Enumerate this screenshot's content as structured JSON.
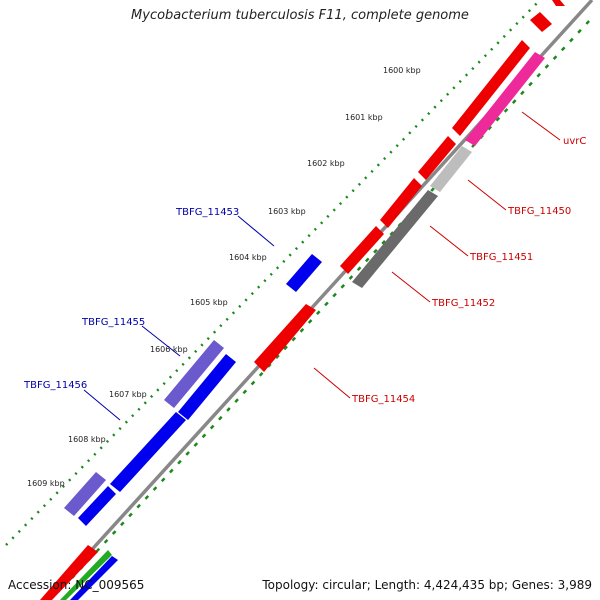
{
  "title": "Mycobacterium tuberculosis F11, complete genome",
  "accession": "Accession: NC_009565",
  "summary": "Topology: circular; Length: 4,424,435 bp; Genes: 3,989",
  "colors": {
    "backbone": "#808080",
    "tick_green": "#1a8a1a",
    "forward_blue": "#0000ee",
    "forward_purple": "#6a5acd",
    "reverse_red": "#ee0000",
    "reverse_magenta": "#ee2a9a",
    "reverse_lightgray": "#bdbdbd",
    "reverse_darkgray": "#6a6a6a",
    "label_blue": "#0000aa",
    "label_red": "#cc0000"
  },
  "ticks": [
    "1600 kbp",
    "1601 kbp",
    "1602 kbp",
    "1603 kbp",
    "1604 kbp",
    "1605 kbp",
    "1606 kbp",
    "1607 kbp",
    "1608 kbp",
    "1609 kbp"
  ],
  "genes": [
    {
      "name": "uvrC",
      "strand": "reverse",
      "color": "reverse_magenta"
    },
    {
      "name": "TBFG_11450",
      "strand": "reverse",
      "color": "reverse_lightgray"
    },
    {
      "name": "TBFG_11451",
      "strand": "reverse",
      "color": "reverse_darkgray"
    },
    {
      "name": "TBFG_11452",
      "strand": "reverse",
      "color": "reverse_red"
    },
    {
      "name": "TBFG_11453",
      "strand": "forward",
      "color": "forward_blue"
    },
    {
      "name": "TBFG_11454",
      "strand": "reverse",
      "color": "reverse_red"
    },
    {
      "name": "TBFG_11455",
      "strand": "forward",
      "color": "forward_purple"
    },
    {
      "name": "TBFG_11456",
      "strand": "forward",
      "color": "forward_blue"
    }
  ]
}
